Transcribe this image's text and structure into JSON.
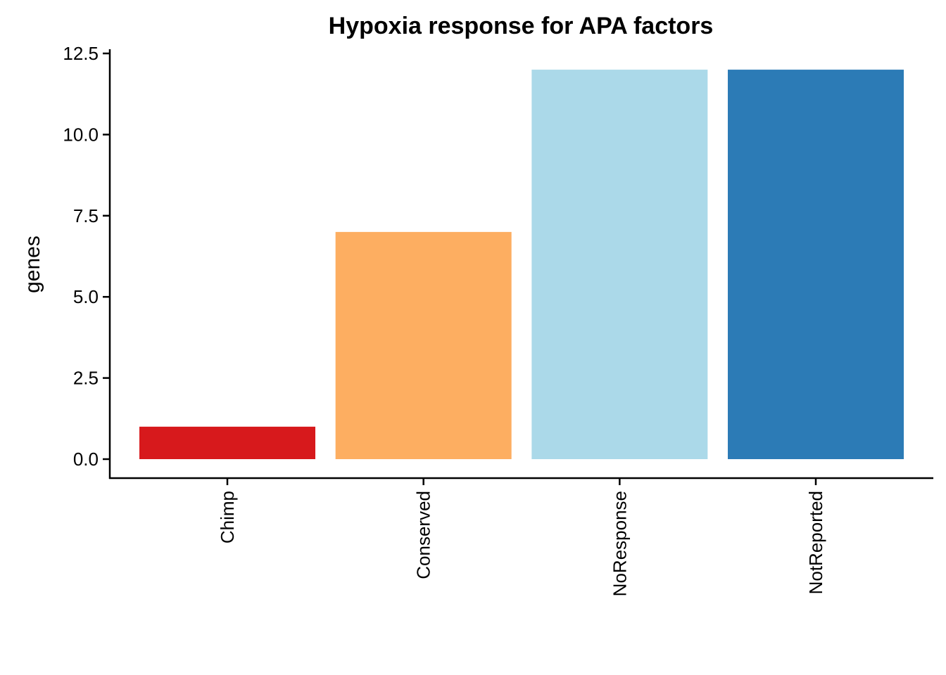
{
  "chart_data": {
    "type": "bar",
    "title": "Hypoxia response for APA factors",
    "xlabel": "",
    "ylabel": "genes",
    "categories": [
      "Chimp",
      "Conserved",
      "NoResponse",
      "NotReported"
    ],
    "values": [
      1,
      7,
      12,
      12
    ],
    "colors": [
      "#d7191c",
      "#fdae61",
      "#abd9e9",
      "#2c7bb6"
    ],
    "ylim": [
      0,
      12.5
    ],
    "yticks": [
      0.0,
      2.5,
      5.0,
      7.5,
      10.0,
      12.5
    ],
    "ytick_labels": [
      "0.0",
      "2.5",
      "5.0",
      "7.5",
      "10.0",
      "12.5"
    ],
    "grid": false,
    "legend": "none"
  }
}
